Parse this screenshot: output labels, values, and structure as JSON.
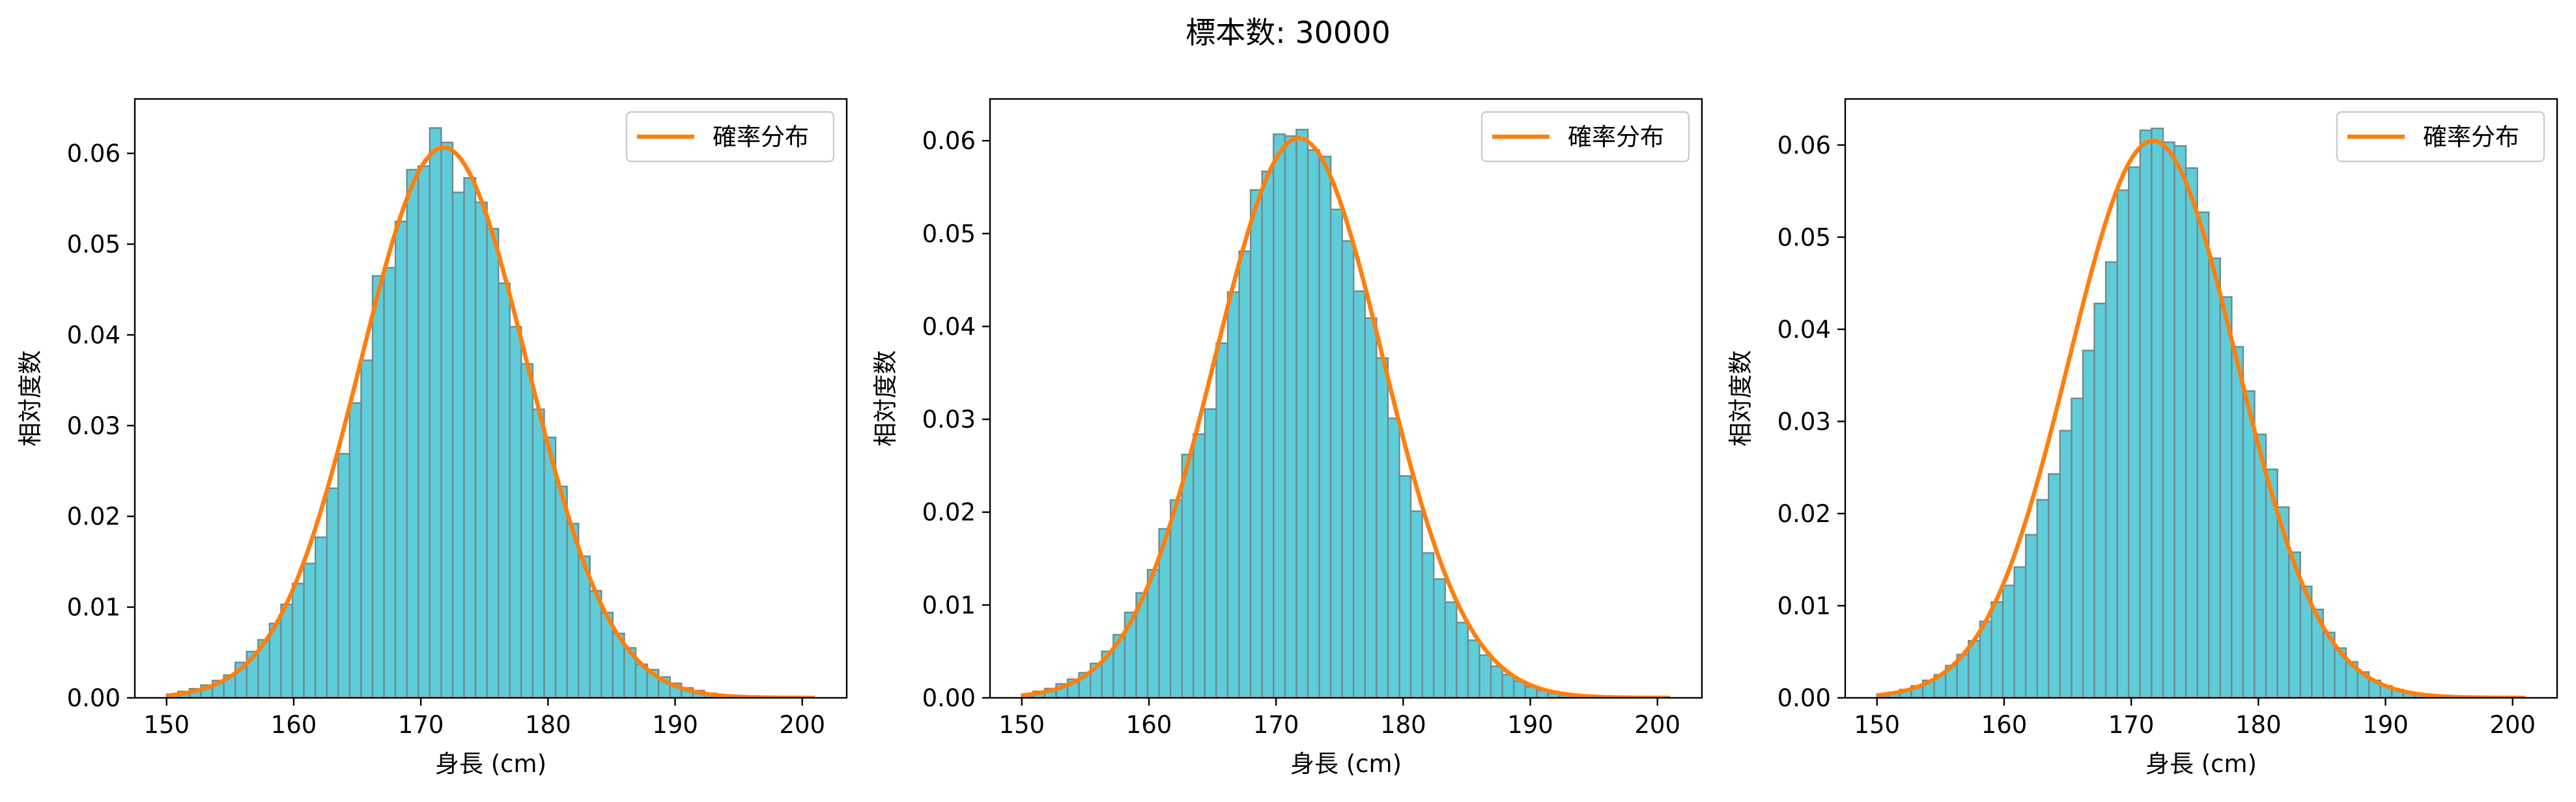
{
  "title": "標本数: 30000",
  "chart_data": [
    {
      "type": "bar",
      "xlabel": "身長 (cm)",
      "ylabel": "相対度数",
      "xlim": [
        147.5,
        203.5
      ],
      "ylim": [
        0,
        0.066
      ],
      "xticks": [
        150,
        160,
        170,
        180,
        190,
        200
      ],
      "yticks": [
        0,
        0.01,
        0.02,
        0.03,
        0.04,
        0.05,
        0.06
      ],
      "grid": false,
      "legend": {
        "position": "top-right",
        "label": "確率分布"
      },
      "colors": {
        "bar": "#5fcdd9",
        "bar_edge": "#6e8a8e",
        "curve": "#ff7f0e"
      },
      "bin_edges_start": 150.0,
      "bin_width": 0.9,
      "bin_count": 56,
      "values": [
        0.0004,
        0.0007,
        0.001,
        0.0014,
        0.0019,
        0.0025,
        0.0039,
        0.0051,
        0.0064,
        0.0082,
        0.0103,
        0.0126,
        0.0148,
        0.0177,
        0.0231,
        0.0269,
        0.0325,
        0.0372,
        0.0465,
        0.0474,
        0.0525,
        0.0582,
        0.0586,
        0.0628,
        0.0612,
        0.0557,
        0.0573,
        0.0546,
        0.0517,
        0.0457,
        0.0409,
        0.0368,
        0.0318,
        0.0287,
        0.0233,
        0.0192,
        0.0156,
        0.0118,
        0.0094,
        0.0071,
        0.0055,
        0.0037,
        0.0031,
        0.0023,
        0.0016,
        0.0011,
        0.0008,
        0.0005,
        0.0003,
        0.0002,
        0.0001,
        0.0001,
        0.0001,
        0.0,
        0.0,
        0.0
      ],
      "curve": {
        "mean": 171.8,
        "sd": 6.58,
        "x_start": 150,
        "x_end": 201
      }
    },
    {
      "type": "bar",
      "xlabel": "身長 (cm)",
      "ylabel": "相対度数",
      "xlim": [
        147.5,
        203.5
      ],
      "ylim": [
        0,
        0.0645
      ],
      "xticks": [
        150,
        160,
        170,
        180,
        190,
        200
      ],
      "yticks": [
        0,
        0.01,
        0.02,
        0.03,
        0.04,
        0.05,
        0.06
      ],
      "grid": false,
      "legend": {
        "position": "top-right",
        "label": "確率分布"
      },
      "colors": {
        "bar": "#5fcdd9",
        "bar_edge": "#6e8a8e",
        "curve": "#ff7f0e"
      },
      "bin_edges_start": 150.0,
      "bin_width": 0.9,
      "bin_count": 56,
      "values": [
        0.0004,
        0.0007,
        0.001,
        0.0015,
        0.002,
        0.0027,
        0.0037,
        0.005,
        0.0068,
        0.0092,
        0.0113,
        0.0138,
        0.0182,
        0.0213,
        0.0262,
        0.0284,
        0.0311,
        0.0382,
        0.0437,
        0.0481,
        0.0547,
        0.0567,
        0.0607,
        0.0605,
        0.0612,
        0.059,
        0.0583,
        0.0526,
        0.0492,
        0.0438,
        0.0409,
        0.0366,
        0.0301,
        0.0239,
        0.0201,
        0.0156,
        0.0128,
        0.0103,
        0.0081,
        0.0062,
        0.0046,
        0.0034,
        0.0025,
        0.0018,
        0.0012,
        0.0008,
        0.0005,
        0.0003,
        0.0002,
        0.0001,
        0.0001,
        0.0,
        0.0,
        0.0,
        0.0,
        0.0
      ],
      "curve": {
        "mean": 171.8,
        "sd": 6.62,
        "x_start": 150,
        "x_end": 201
      }
    },
    {
      "type": "bar",
      "xlabel": "身長 (cm)",
      "ylabel": "相対度数",
      "xlim": [
        147.5,
        203.5
      ],
      "ylim": [
        0,
        0.065
      ],
      "xticks": [
        150,
        160,
        170,
        180,
        190,
        200
      ],
      "yticks": [
        0,
        0.01,
        0.02,
        0.03,
        0.04,
        0.05,
        0.06
      ],
      "grid": false,
      "legend": {
        "position": "top-right",
        "label": "確率分布"
      },
      "colors": {
        "bar": "#5fcdd9",
        "bar_edge": "#6e8a8e",
        "curve": "#ff7f0e"
      },
      "bin_edges_start": 150.0,
      "bin_width": 0.9,
      "bin_count": 56,
      "values": [
        0.0004,
        0.0006,
        0.0009,
        0.0013,
        0.0019,
        0.0025,
        0.0035,
        0.0047,
        0.0062,
        0.0083,
        0.0104,
        0.0122,
        0.0142,
        0.0177,
        0.0215,
        0.0243,
        0.029,
        0.0325,
        0.0377,
        0.0428,
        0.0473,
        0.0551,
        0.0576,
        0.0616,
        0.0618,
        0.0603,
        0.0599,
        0.0575,
        0.0527,
        0.0477,
        0.0435,
        0.0381,
        0.0333,
        0.0286,
        0.0248,
        0.0207,
        0.0158,
        0.0121,
        0.0096,
        0.0071,
        0.0054,
        0.0039,
        0.0028,
        0.0019,
        0.0013,
        0.0009,
        0.0006,
        0.0004,
        0.0003,
        0.0002,
        0.0001,
        0.0001,
        0.0,
        0.0,
        0.0,
        0.0
      ],
      "curve": {
        "mean": 171.7,
        "sd": 6.6,
        "x_start": 150,
        "x_end": 201
      }
    }
  ]
}
